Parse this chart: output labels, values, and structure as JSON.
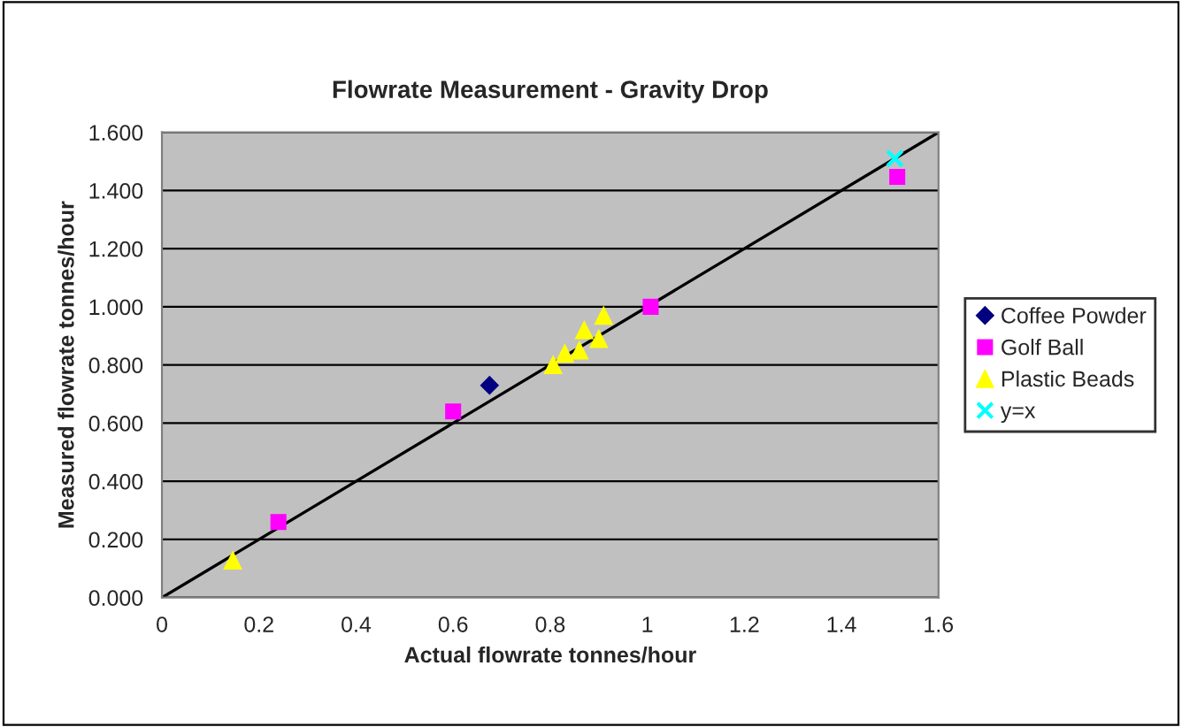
{
  "chart_data": {
    "type": "scatter",
    "title": "Flowrate Measurement - Gravity Drop",
    "xlabel": "Actual flowrate tonnes/hour",
    "ylabel": "Measured flowrate tonnes/hour",
    "series": [
      {
        "name": "Coffee Powder",
        "color": "#000080",
        "marker": "diamond",
        "x": [
          0.675
        ],
        "values": [
          0.73
        ]
      },
      {
        "name": "Golf Ball",
        "color": "#ff00ff",
        "marker": "square",
        "x": [
          0.24,
          0.6,
          1.007,
          1.515
        ],
        "values": [
          0.26,
          0.64,
          1.0,
          1.447
        ]
      },
      {
        "name": "Plastic Beads",
        "color": "#ffff00",
        "marker": "triangle",
        "x": [
          0.146,
          0.806,
          0.83,
          0.86,
          0.87,
          0.9,
          0.91
        ],
        "values": [
          0.128,
          0.8,
          0.84,
          0.85,
          0.92,
          0.89,
          0.97
        ]
      },
      {
        "name": "y=x",
        "color": "#00ffff",
        "marker": "cross",
        "x": [
          1.51
        ],
        "values": [
          1.51
        ]
      },
      {
        "type": "line",
        "color": "#000000",
        "marker": "none",
        "x": [
          0,
          1.6
        ],
        "values": [
          0,
          1.6
        ]
      }
    ],
    "xlim": [
      0,
      1.6
    ],
    "xticks": [
      0,
      0.2,
      0.4,
      0.6,
      0.8,
      1,
      1.2,
      1.4,
      1.6
    ],
    "ylim": [
      0,
      1.6
    ],
    "yticks": [
      {
        "value": 0,
        "label": "0.000"
      },
      {
        "value": 0.2,
        "label": "0.200"
      },
      {
        "value": 0.4,
        "label": "0.400"
      },
      {
        "value": 0.6,
        "label": "0.600"
      },
      {
        "value": 0.8,
        "label": "0.800"
      },
      {
        "value": 1,
        "label": "1.000"
      },
      {
        "value": 1.2,
        "label": "1.200"
      },
      {
        "value": 1.4,
        "label": "1.400"
      },
      {
        "value": 1.6,
        "label": "1.600"
      }
    ],
    "grid": "y",
    "legend": "right"
  }
}
